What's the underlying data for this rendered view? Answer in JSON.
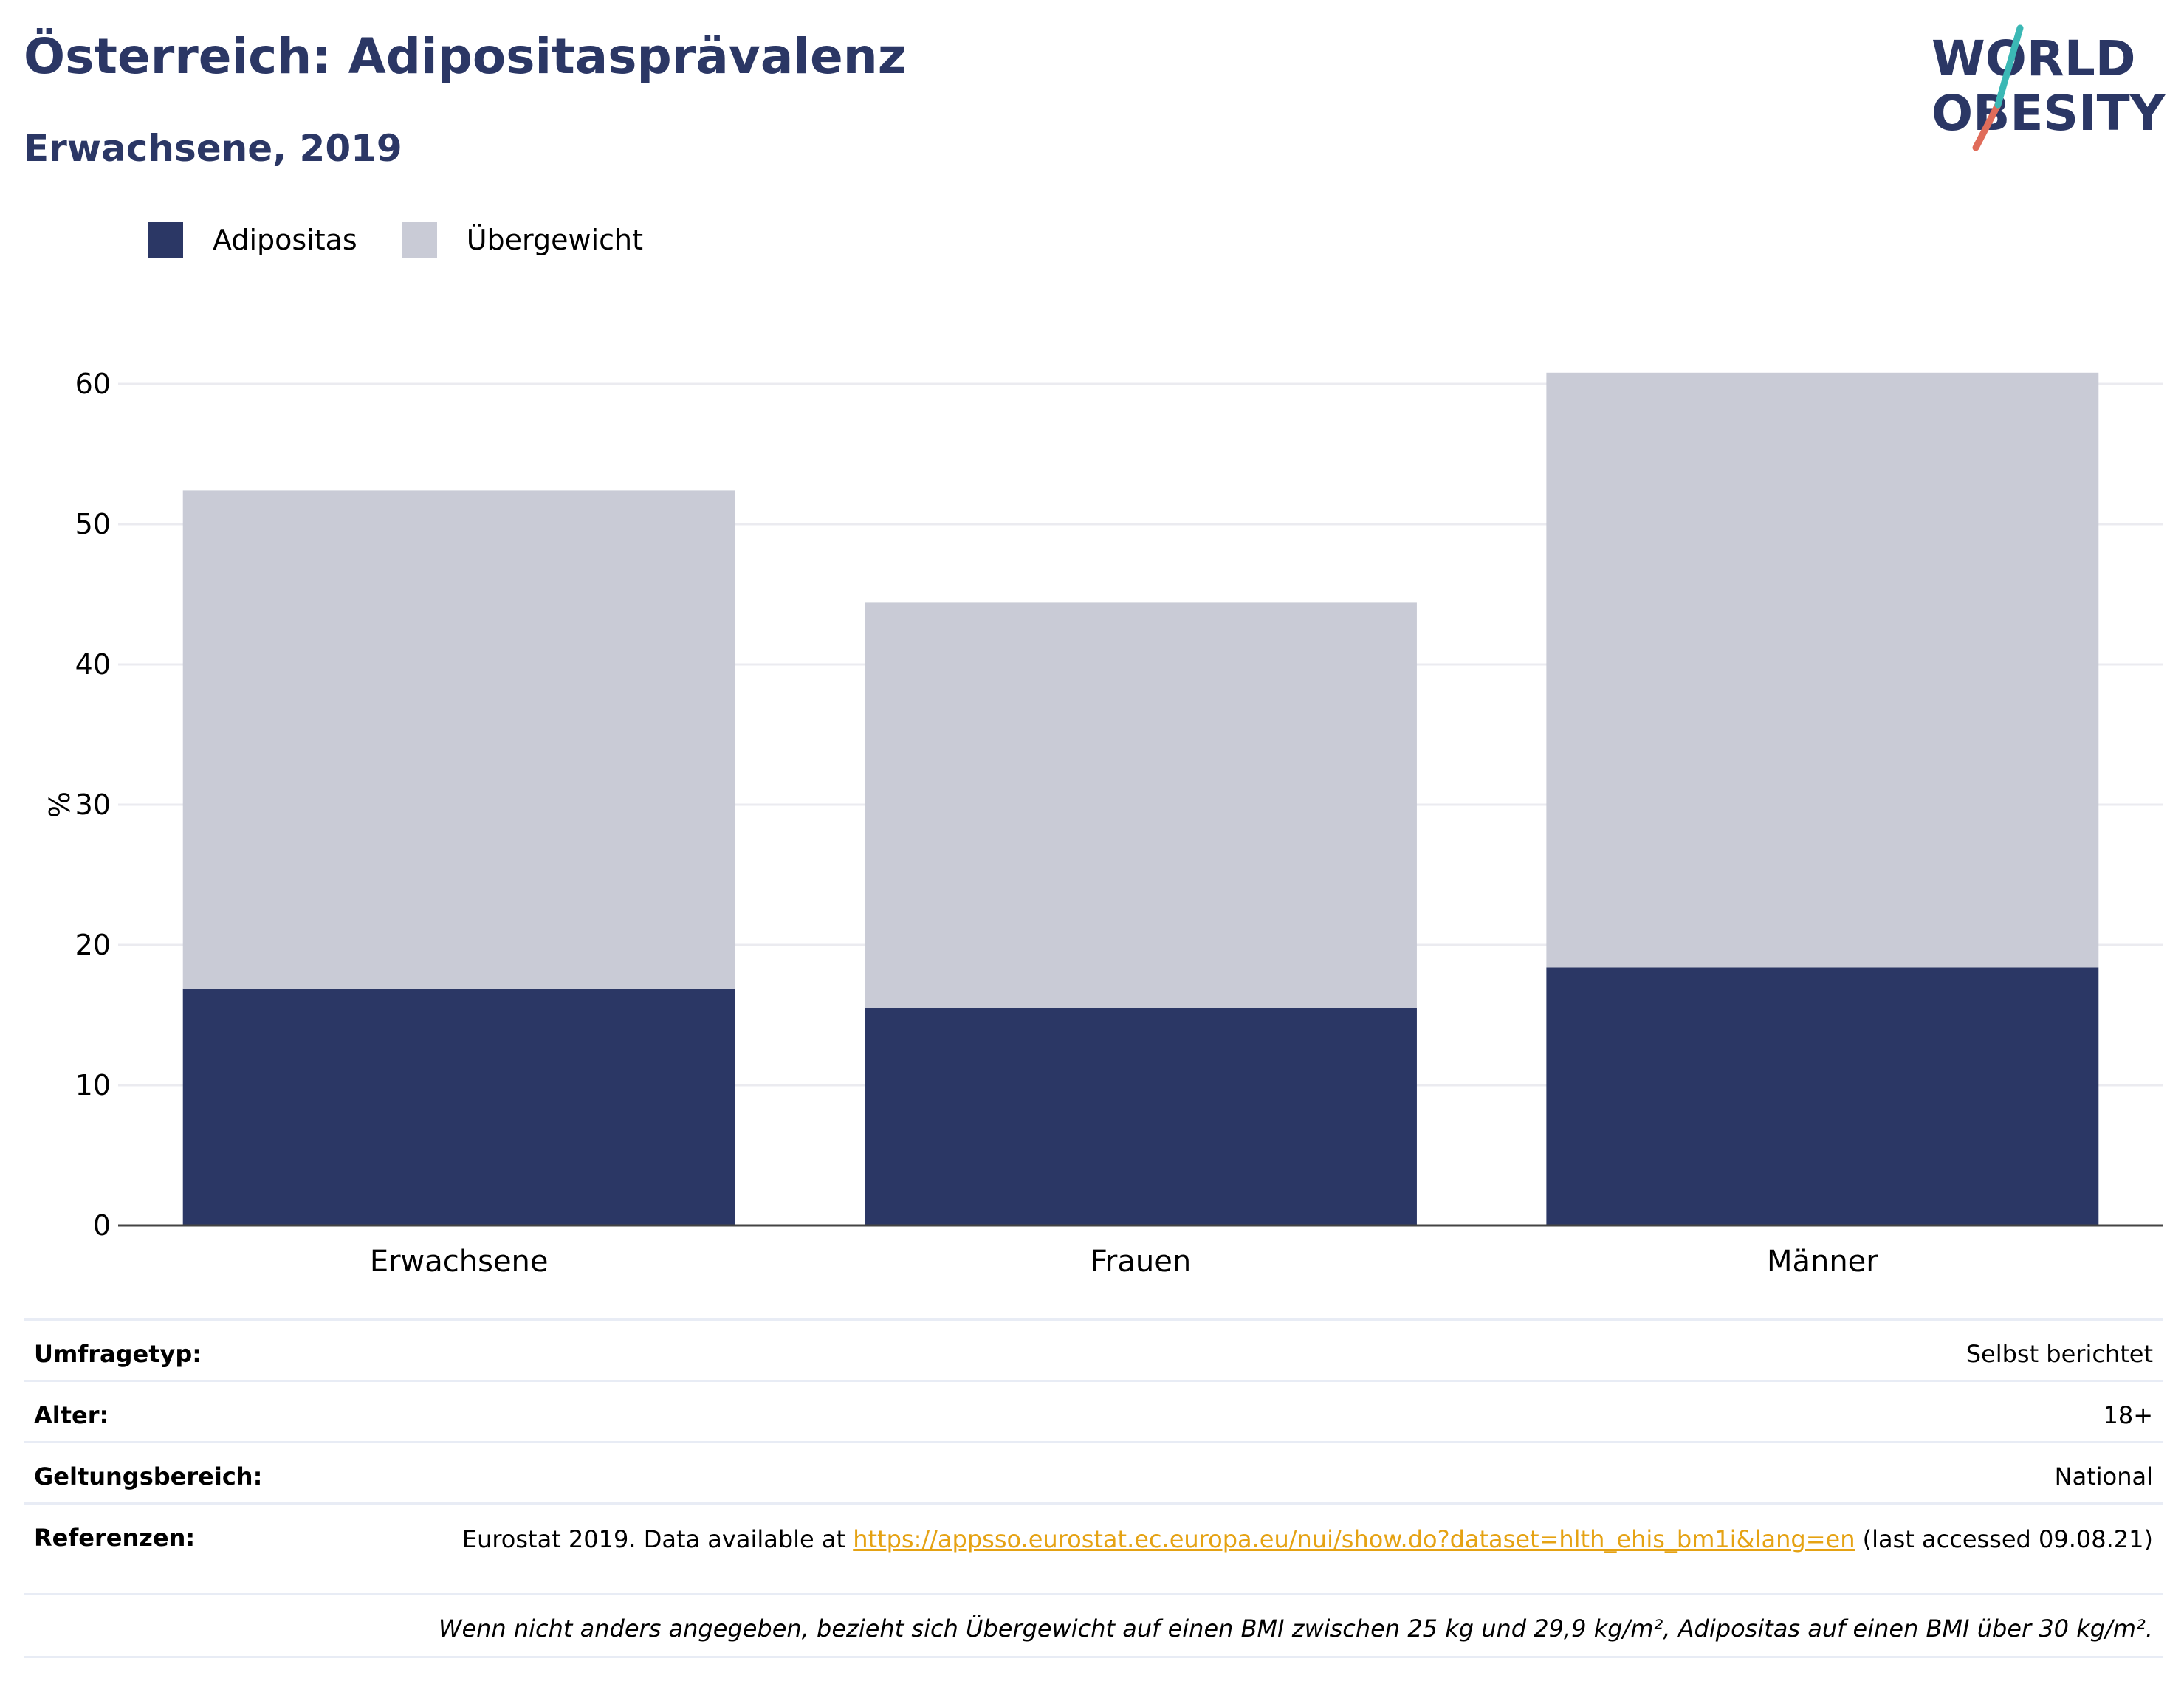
{
  "title": "Österreich: Adipositasprävalenz",
  "subtitle": "Erwachsene, 2019",
  "logo": {
    "line1": "WORLD",
    "line2": "OBESITY"
  },
  "colors": {
    "obesity": "#2b3765",
    "overweight": "#c9cbd6",
    "title": "#2b3765",
    "link": "#e5a213",
    "logo_teal": "#3bb8b5",
    "logo_red": "#e06c5a"
  },
  "legend": [
    {
      "label": "Adipositas",
      "color": "#2b3765"
    },
    {
      "label": "Übergewicht",
      "color": "#c9cbd6"
    }
  ],
  "chart_data": {
    "type": "bar",
    "stacked": true,
    "categories": [
      "Erwachsene",
      "Frauen",
      "Männer"
    ],
    "series": [
      {
        "name": "Adipositas",
        "values": [
          16.9,
          15.5,
          18.4
        ]
      },
      {
        "name": "Übergewicht",
        "values": [
          35.5,
          28.9,
          42.4
        ]
      }
    ],
    "ylabel": "%",
    "xlabel": "",
    "ylim": [
      0,
      60
    ],
    "yticks": [
      "0",
      "10",
      "20",
      "30",
      "40",
      "50",
      "60"
    ],
    "grid": true,
    "legend_position": "top-left"
  },
  "info": {
    "survey_type_label": "Umfragetyp:",
    "survey_type_value": "Selbst berichtet",
    "age_label": "Alter:",
    "age_value": "18+",
    "scope_label": "Geltungsbereich:",
    "scope_value": "National",
    "references_label": "Referenzen:",
    "references_prefix": "Eurostat 2019. Data available at",
    "references_link": "https://appsso.eurostat.ec.europa.eu/nui/show.do?dataset=hlth_ehis_bm1i&lang=en",
    "references_suffix": "(last accessed 09.08.21)",
    "footnote": "Wenn nicht anders angegeben, bezieht sich Übergewicht auf einen BMI zwischen 25 kg und 29,9 kg/m², Adipositas auf einen BMI über 30 kg/m²."
  }
}
